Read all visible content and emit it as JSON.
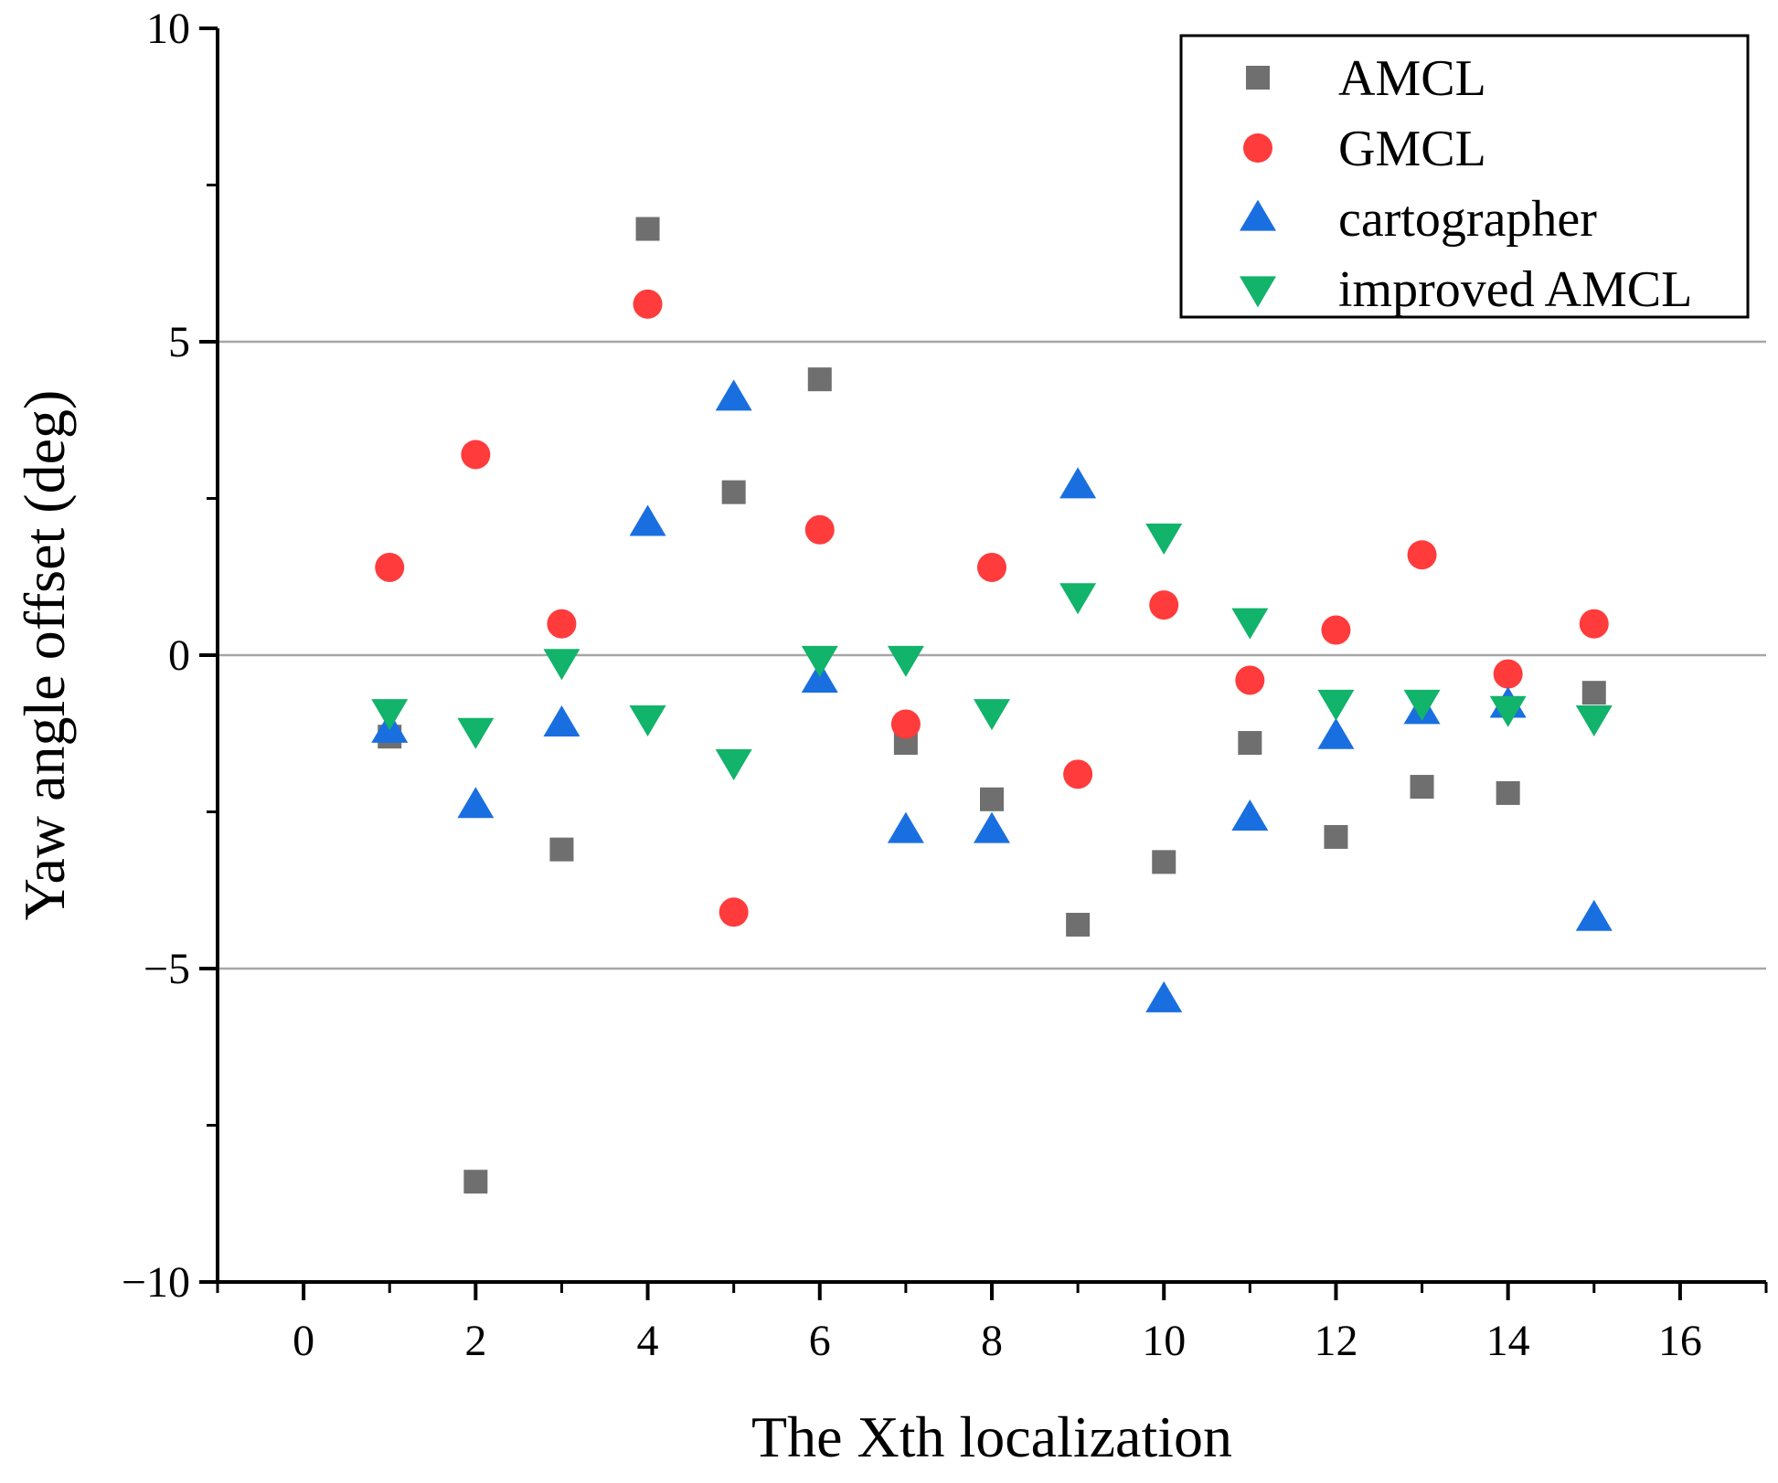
{
  "chart_data": {
    "type": "scatter",
    "title": "",
    "xlabel": "The Xth localization",
    "ylabel": "Yaw angle offset (deg)",
    "xlim": [
      -1,
      17
    ],
    "ylim": [
      -10,
      10
    ],
    "xticks": [
      0,
      2,
      4,
      6,
      8,
      10,
      12,
      14,
      16
    ],
    "yticks": [
      -10,
      -5,
      0,
      5,
      10
    ],
    "grid_y": [
      -5,
      0,
      5
    ],
    "legend_position": "top-right",
    "series": [
      {
        "name": "AMCL",
        "marker": "square",
        "color": "#6f6f6f",
        "x": [
          1,
          2,
          3,
          4,
          5,
          6,
          7,
          8,
          9,
          10,
          11,
          12,
          13,
          14,
          15
        ],
        "y": [
          -1.3,
          -8.4,
          -3.1,
          6.8,
          2.6,
          4.4,
          -1.4,
          -2.3,
          -4.3,
          -3.3,
          -1.4,
          -2.9,
          -2.1,
          -2.2,
          -0.6
        ]
      },
      {
        "name": "GMCL",
        "marker": "circle",
        "color": "#ff3b3b",
        "x": [
          1,
          2,
          3,
          4,
          5,
          6,
          7,
          8,
          9,
          10,
          11,
          12,
          13,
          14,
          15
        ],
        "y": [
          1.4,
          3.2,
          0.5,
          5.6,
          -4.1,
          2.0,
          -1.1,
          1.4,
          -1.9,
          0.8,
          -0.4,
          0.4,
          1.6,
          -0.3,
          0.5
        ]
      },
      {
        "name": "cartographer",
        "marker": "triangle-up",
        "color": "#1a6fe0",
        "x": [
          1,
          2,
          3,
          4,
          5,
          6,
          7,
          8,
          9,
          10,
          11,
          12,
          13,
          14,
          15
        ],
        "y": [
          -1.2,
          -2.4,
          -1.1,
          2.1,
          4.1,
          -0.4,
          -2.8,
          -2.8,
          2.7,
          -5.5,
          -2.6,
          -1.3,
          -0.9,
          -0.8,
          -4.2
        ]
      },
      {
        "name": "improved AMCL",
        "marker": "triangle-down",
        "color": "#12b36a",
        "x": [
          1,
          2,
          3,
          4,
          5,
          6,
          7,
          8,
          9,
          10,
          11,
          12,
          13,
          14,
          15
        ],
        "y": [
          -0.9,
          -1.2,
          -0.1,
          -1.0,
          -1.7,
          -0.05,
          -0.05,
          -0.9,
          0.95,
          1.9,
          0.55,
          -0.75,
          -0.75,
          -0.85,
          -1.0
        ]
      }
    ]
  }
}
